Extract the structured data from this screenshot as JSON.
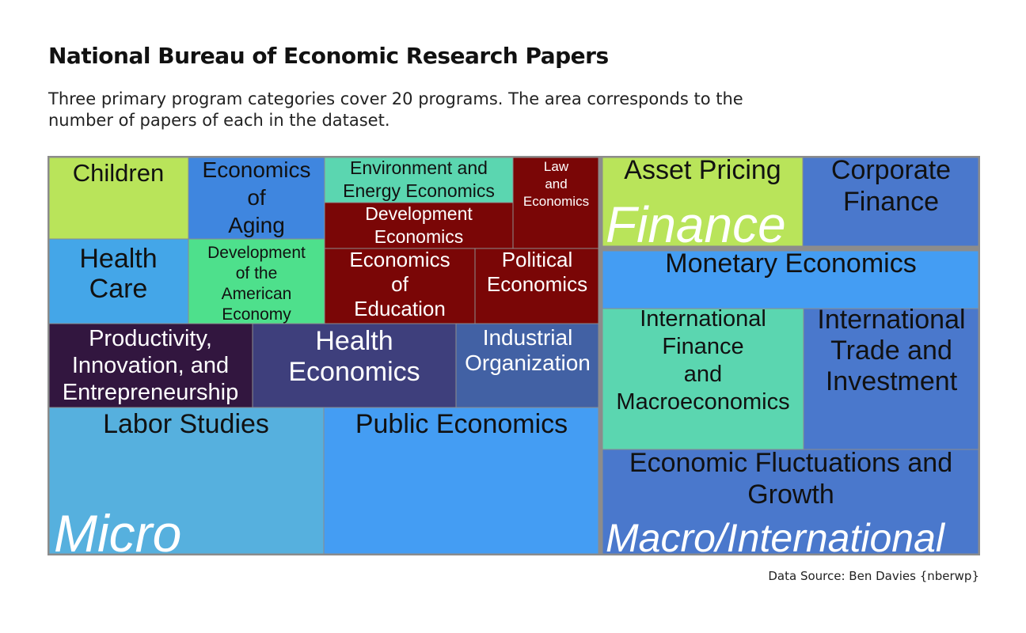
{
  "title": "National Bureau of Economic Research Papers",
  "subtitle": "Three primary program categories cover 20 programs. The area corresponds to the number of papers of each in the dataset.",
  "source": "Data Source: Ben Davies {nberwp}",
  "chart_data": {
    "type": "treemap",
    "value_measure": "number of papers (area)",
    "categories": [
      {
        "name": "Micro",
        "programs": [
          {
            "name": "Labor Studies",
            "lines": [
              "Labor Studies"
            ],
            "color": "#56b0de"
          },
          {
            "name": "Public Economics",
            "lines": [
              "Public Economics"
            ],
            "color": "#449df3"
          },
          {
            "name": "Productivity, Innovation, and Entrepreneurship",
            "lines": [
              "Productivity,",
              "Innovation, and",
              "Entrepreneurship"
            ],
            "color": "#32163f"
          },
          {
            "name": "Health Economics",
            "lines": [
              "Health",
              "Economics"
            ],
            "color": "#3e3f7c"
          },
          {
            "name": "Industrial Organization",
            "lines": [
              "Industrial",
              "Organization"
            ],
            "color": "#4261a4"
          },
          {
            "name": "Children",
            "lines": [
              "Children"
            ],
            "color": "#b9e45a"
          },
          {
            "name": "Health Care",
            "lines": [
              "Health",
              "Care"
            ],
            "color": "#44a6e8"
          },
          {
            "name": "Economics of Aging",
            "lines": [
              "Economics",
              "of",
              "Aging"
            ],
            "color": "#3f86df"
          },
          {
            "name": "Development of the American Economy",
            "lines": [
              "Development",
              "of the",
              "American",
              "Economy"
            ],
            "color": "#4ee08c"
          },
          {
            "name": "Environment and Energy Economics",
            "lines": [
              "Environment and",
              "Energy Economics"
            ],
            "color": "#5bd6b0"
          },
          {
            "name": "Development Economics",
            "lines": [
              "Development",
              "Economics"
            ],
            "color": "#7a0606"
          },
          {
            "name": "Law and Economics",
            "lines": [
              "Law",
              "and",
              "Economics"
            ],
            "color": "#7a0606"
          },
          {
            "name": "Economics of Education",
            "lines": [
              "Economics",
              "of",
              "Education"
            ],
            "color": "#7a0606"
          },
          {
            "name": "Political Economics",
            "lines": [
              "Political",
              "Economics"
            ],
            "color": "#7a0606"
          }
        ]
      },
      {
        "name": "Finance",
        "programs": [
          {
            "name": "Asset Pricing",
            "lines": [
              "Asset Pricing"
            ],
            "color": "#b9e45a"
          },
          {
            "name": "Corporate Finance",
            "lines": [
              "Corporate",
              "Finance"
            ],
            "color": "#4a78cc"
          }
        ]
      },
      {
        "name": "Macro/International",
        "programs": [
          {
            "name": "Monetary Economics",
            "lines": [
              "Monetary Economics"
            ],
            "color": "#449df3"
          },
          {
            "name": "International Finance and Macroeconomics",
            "lines": [
              "International",
              "Finance",
              "and",
              "Macroeconomics"
            ],
            "color": "#5bd6b0"
          },
          {
            "name": "International Trade and Investment",
            "lines": [
              "International",
              "Trade and",
              "Investment"
            ],
            "color": "#4a78cc"
          },
          {
            "name": "Economic Fluctuations and Growth",
            "lines": [
              "Economic Fluctuations and",
              "Growth"
            ],
            "color": "#4a78cc"
          }
        ]
      }
    ]
  }
}
